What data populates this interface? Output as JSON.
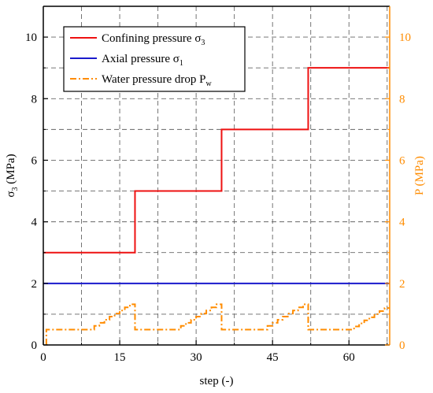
{
  "chart_data": {
    "type": "line",
    "x_axis": {
      "label": "step (-)",
      "range": [
        0,
        68
      ],
      "ticks": [
        0,
        15,
        30,
        45,
        60
      ],
      "tick_labels": [
        "0",
        "15",
        "30",
        "45",
        "60"
      ]
    },
    "y_axis_left": {
      "label": "σ3 (MPa)",
      "label_main": "σ",
      "label_sub": "3",
      "label_rest": " (MPa)",
      "range": [
        0,
        11
      ],
      "ticks": [
        0,
        2,
        4,
        6,
        8,
        10
      ],
      "tick_labels": [
        "0",
        "2",
        "4",
        "6",
        "8",
        "10"
      ]
    },
    "y_axis_right": {
      "label": "P (MPa)",
      "range": [
        0,
        11
      ],
      "ticks": [
        0,
        2,
        4,
        6,
        8,
        10
      ],
      "tick_labels": [
        "0",
        "2",
        "4",
        "6",
        "8",
        "10"
      ],
      "color": "#ff8c00"
    },
    "grid": true,
    "legend_position": "top-left",
    "series": [
      {
        "name": "Confining pressure σ3",
        "name_main": "Confining pressure σ",
        "name_sub": "3",
        "color": "#ee1111",
        "style": "solid",
        "axis": "left",
        "x": [
          0,
          18,
          18,
          35,
          35,
          52,
          52,
          68
        ],
        "y": [
          3,
          3,
          5,
          5,
          7,
          7,
          9,
          9
        ]
      },
      {
        "name": "Axial pressure σ1",
        "name_main": "Axial pressure σ",
        "name_sub": "1",
        "color": "#1a1acc",
        "style": "solid",
        "axis": "left",
        "x": [
          0,
          68
        ],
        "y": [
          2,
          2
        ]
      },
      {
        "name": "Water pressure drop Pw",
        "name_main": "Water pressure drop P",
        "name_sub": "w",
        "color": "#ff8c00",
        "style": "dashdot",
        "axis": "right",
        "x": [
          0.6,
          0.6,
          1,
          10,
          10,
          11,
          11,
          12,
          12,
          13,
          13,
          14,
          14,
          15,
          15,
          16,
          16,
          17,
          17,
          18,
          18,
          27,
          27,
          28,
          28,
          29,
          29,
          30,
          30,
          31,
          31,
          32,
          32,
          33,
          33,
          34,
          34,
          35,
          35,
          44,
          44,
          45,
          45,
          46,
          46,
          47,
          47,
          48,
          48,
          49,
          49,
          50,
          50,
          51,
          51,
          52,
          52,
          61,
          61,
          62,
          62,
          63,
          63,
          64,
          64,
          65,
          65,
          66,
          66,
          67,
          67,
          68
        ],
        "y": [
          0,
          0.5,
          0.5,
          0.5,
          0.62,
          0.62,
          0.72,
          0.72,
          0.82,
          0.82,
          0.92,
          0.92,
          1.02,
          1.02,
          1.12,
          1.12,
          1.22,
          1.22,
          1.32,
          1.32,
          0.5,
          0.5,
          0.62,
          0.62,
          0.72,
          0.72,
          0.82,
          0.82,
          0.92,
          0.92,
          1.02,
          1.02,
          1.12,
          1.12,
          1.22,
          1.22,
          1.32,
          1.32,
          0.5,
          0.5,
          0.62,
          0.62,
          0.72,
          0.72,
          0.82,
          0.82,
          0.92,
          0.92,
          1.02,
          1.02,
          1.12,
          1.12,
          1.22,
          1.22,
          1.32,
          1.32,
          0.5,
          0.5,
          0.6,
          0.6,
          0.7,
          0.7,
          0.8,
          0.8,
          0.9,
          0.9,
          1.0,
          1.0,
          1.1,
          1.1,
          1.2,
          1.2
        ]
      }
    ]
  }
}
